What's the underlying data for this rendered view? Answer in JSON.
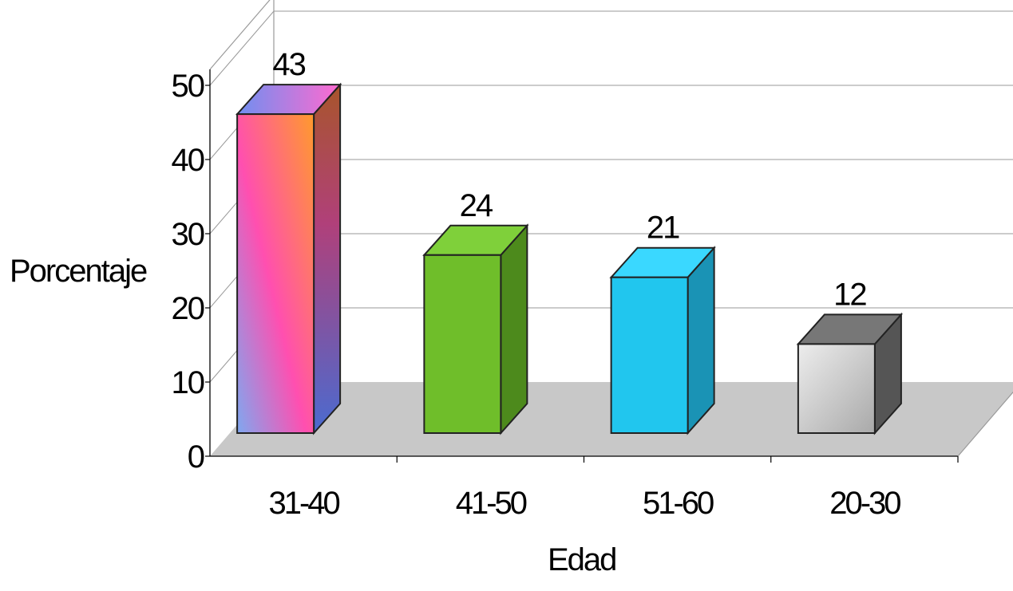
{
  "chart_data": {
    "type": "bar",
    "style": "3d-column",
    "title": "",
    "xlabel": "Edad",
    "ylabel": "Porcentaje",
    "ylim": [
      0,
      50
    ],
    "yticks": [
      "0",
      "10",
      "20",
      "30",
      "40",
      "50"
    ],
    "grid": true,
    "legend": "none",
    "categories": [
      "31-40",
      "41-50",
      "51-60",
      "20-30"
    ],
    "values": [
      43,
      24,
      21,
      12
    ],
    "data_labels": [
      "43",
      "24",
      "21",
      "12"
    ],
    "colors": {
      "bar_31_40": [
        "#7fa8f0",
        "#ff4fb0",
        "#ff8a3c"
      ],
      "bar_41_50": "#6fbe2a",
      "bar_51_60": "#21c6ee",
      "bar_20_30": "#cfcfcf",
      "floor": "#c8c8c8",
      "gridline": "#9a9a9a",
      "outline": "#222222"
    }
  }
}
